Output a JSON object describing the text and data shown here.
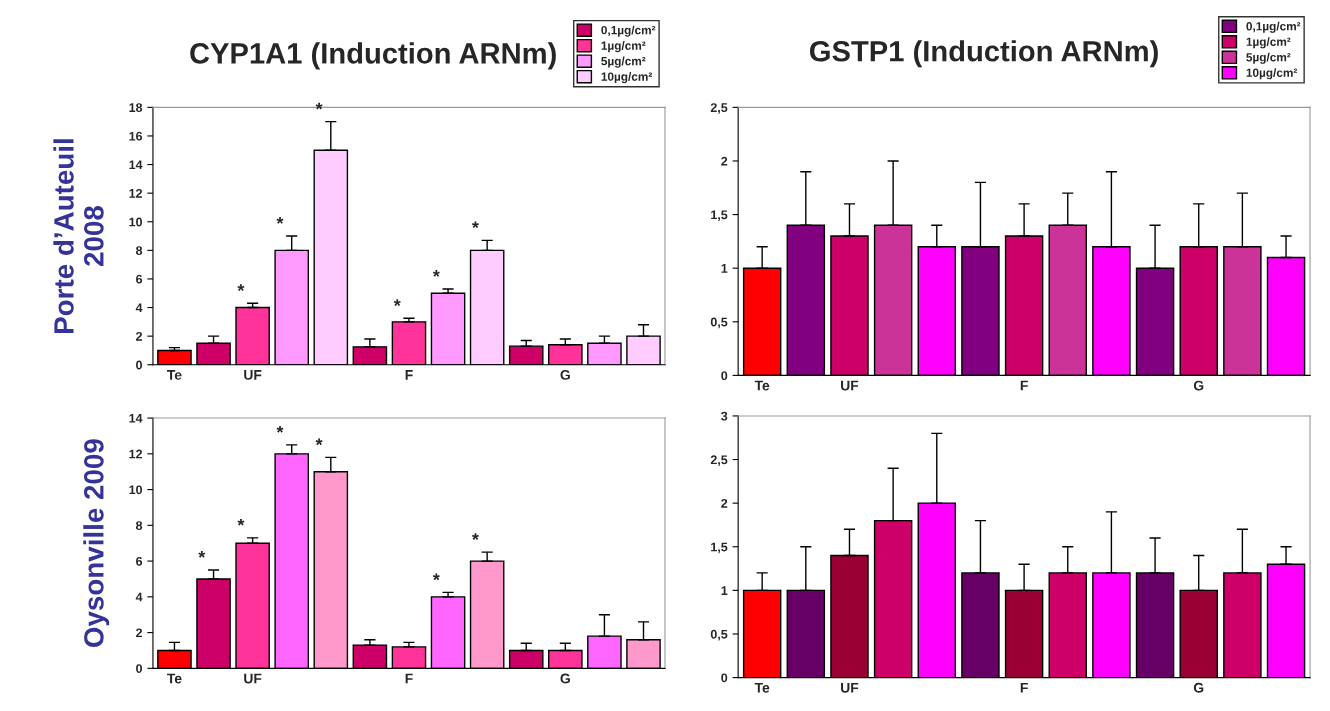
{
  "chart_data": [
    {
      "type": "bar",
      "title": "CYP1A1 (Induction ARNm)",
      "ylabel": "Porte d’Auteuil\n2008",
      "categories": [
        "Te",
        null,
        "UF",
        null,
        null,
        null,
        "F",
        null,
        null,
        null,
        "G",
        null,
        null
      ],
      "ylim": [
        0,
        18
      ],
      "yticks": [
        0,
        2,
        4,
        6,
        8,
        10,
        12,
        14,
        16,
        18
      ],
      "grid": false,
      "legend": "top right",
      "series": [
        {
          "color": "#ff0000",
          "values": [
            1.0,
            null,
            null,
            null,
            null,
            null,
            null,
            null,
            null,
            null,
            null,
            null,
            null
          ],
          "errors": [
            [
              1.0,
              1.2
            ],
            null,
            null,
            null,
            null,
            null,
            null,
            null,
            null,
            null,
            null,
            null,
            null
          ]
        },
        {
          "name": "0,1µg/cm²",
          "color": "#cc0066",
          "values": [
            null,
            1.5,
            null,
            null,
            null,
            1.25,
            null,
            null,
            null,
            1.3,
            null,
            null,
            null
          ],
          "errors": [
            null,
            [
              1.5,
              2.0
            ],
            null,
            null,
            null,
            [
              1.25,
              1.8
            ],
            null,
            null,
            null,
            [
              1.3,
              1.7
            ],
            null,
            null,
            null
          ]
        },
        {
          "name": "1µg/cm²",
          "color": "#ff3399",
          "values": [
            null,
            null,
            4.0,
            null,
            null,
            null,
            3.0,
            null,
            null,
            null,
            1.4,
            null,
            null
          ],
          "errors": [
            null,
            null,
            [
              4.0,
              4.3
            ],
            null,
            null,
            null,
            [
              3.0,
              3.25
            ],
            null,
            null,
            null,
            [
              1.4,
              1.8
            ],
            null,
            null
          ],
          "value_labels": [
            null,
            null,
            "*",
            null,
            null,
            null,
            "*",
            null,
            null,
            null,
            null,
            null,
            null
          ]
        },
        {
          "name": "5µg/cm²",
          "color": "#ff99ff",
          "values": [
            null,
            null,
            null,
            8.0,
            null,
            null,
            null,
            5.0,
            null,
            null,
            null,
            1.5,
            null
          ],
          "errors": [
            null,
            null,
            null,
            [
              8.0,
              9.0
            ],
            null,
            null,
            null,
            [
              5.0,
              5.3
            ],
            null,
            null,
            null,
            [
              1.5,
              2.0
            ],
            null
          ],
          "value_labels": [
            null,
            null,
            null,
            "*",
            null,
            null,
            null,
            "*",
            null,
            null,
            null,
            null,
            null
          ]
        },
        {
          "name": "10µg/cm²",
          "color": "#ffccff",
          "values": [
            null,
            null,
            null,
            null,
            15.0,
            null,
            null,
            null,
            8.0,
            null,
            null,
            null,
            2.0
          ],
          "errors": [
            null,
            null,
            null,
            null,
            [
              15.0,
              17.0
            ],
            null,
            null,
            null,
            [
              8.0,
              8.7
            ],
            null,
            null,
            null,
            [
              2.0,
              2.8
            ]
          ],
          "value_labels": [
            null,
            null,
            null,
            null,
            "*",
            null,
            null,
            null,
            "*",
            null,
            null,
            null,
            null
          ]
        }
      ]
    },
    {
      "type": "bar",
      "title": "GSTP1 (Induction ARNm)",
      "categories": [
        "Te",
        null,
        "UF",
        null,
        null,
        null,
        "F",
        null,
        null,
        null,
        "G",
        null,
        null
      ],
      "ylim": [
        0,
        2.5
      ],
      "yticks": [
        0,
        {
          "value": 0.5,
          "label": "0,5"
        },
        1,
        {
          "value": 1.5,
          "label": "1,5"
        },
        2,
        {
          "value": 2.5,
          "label": "2,5"
        }
      ],
      "grid": false,
      "legend": "top right",
      "series": [
        {
          "color": "#ff0000",
          "values": [
            1.0,
            null,
            null,
            null,
            null,
            null,
            null,
            null,
            null,
            null,
            null,
            null,
            null
          ],
          "errors": [
            [
              1.0,
              1.2
            ],
            null,
            null,
            null,
            null,
            null,
            null,
            null,
            null,
            null,
            null,
            null,
            null
          ]
        },
        {
          "name": "0,1µg/cm²",
          "color": "#800080",
          "values": [
            null,
            1.4,
            null,
            null,
            null,
            1.2,
            null,
            null,
            null,
            1.0,
            null,
            null,
            null
          ],
          "errors": [
            null,
            [
              1.4,
              1.9
            ],
            null,
            null,
            null,
            [
              1.2,
              1.8
            ],
            null,
            null,
            null,
            [
              1.0,
              1.4
            ],
            null,
            null,
            null
          ]
        },
        {
          "name": "1µg/cm²",
          "color": "#cc0066",
          "values": [
            null,
            null,
            1.3,
            null,
            null,
            null,
            1.3,
            null,
            null,
            null,
            1.2,
            null,
            null
          ],
          "errors": [
            null,
            null,
            [
              1.3,
              1.6
            ],
            null,
            null,
            null,
            [
              1.3,
              1.6
            ],
            null,
            null,
            null,
            [
              1.2,
              1.6
            ],
            null,
            null
          ]
        },
        {
          "name": "5µg/cm²",
          "color": "#cc3399",
          "values": [
            null,
            null,
            null,
            1.4,
            null,
            null,
            null,
            1.4,
            null,
            null,
            null,
            1.2,
            null
          ],
          "errors": [
            null,
            null,
            null,
            [
              1.4,
              2.0
            ],
            null,
            null,
            null,
            [
              1.4,
              1.7
            ],
            null,
            null,
            null,
            [
              1.2,
              1.7
            ],
            null
          ]
        },
        {
          "name": "10µg/cm²",
          "color": "#ff00ff",
          "values": [
            null,
            null,
            null,
            null,
            1.2,
            null,
            null,
            null,
            1.2,
            null,
            null,
            null,
            1.1
          ],
          "errors": [
            null,
            null,
            null,
            null,
            [
              1.2,
              1.4
            ],
            null,
            null,
            null,
            [
              1.2,
              1.9
            ],
            null,
            null,
            null,
            [
              1.1,
              1.3
            ]
          ]
        }
      ]
    },
    {
      "type": "bar",
      "ylabel": "Oysonville 2009",
      "categories": [
        "Te",
        null,
        "UF",
        null,
        null,
        null,
        "F",
        null,
        null,
        null,
        "G",
        null,
        null
      ],
      "ylim": [
        0,
        14
      ],
      "yticks": [
        0,
        2,
        4,
        6,
        8,
        10,
        12,
        14
      ],
      "grid": false,
      "series": [
        {
          "color": "#ff0000",
          "values": [
            1.0,
            null,
            null,
            null,
            null,
            null,
            null,
            null,
            null,
            null,
            null,
            null,
            null
          ],
          "errors": [
            [
              1.0,
              1.45
            ],
            null,
            null,
            null,
            null,
            null,
            null,
            null,
            null,
            null,
            null,
            null,
            null
          ]
        },
        {
          "color": "#cc0066",
          "values": [
            null,
            5.0,
            null,
            null,
            null,
            1.3,
            null,
            null,
            null,
            1.0,
            null,
            null,
            null
          ],
          "errors": [
            null,
            [
              5.0,
              5.5
            ],
            null,
            null,
            null,
            [
              1.3,
              1.6
            ],
            null,
            null,
            null,
            [
              1.0,
              1.4
            ],
            null,
            null,
            null
          ],
          "value_labels": [
            null,
            "*",
            null,
            null,
            null,
            null,
            null,
            null,
            null,
            null,
            null,
            null,
            null
          ]
        },
        {
          "color": "#ff3399",
          "values": [
            null,
            null,
            7.0,
            null,
            null,
            null,
            1.2,
            null,
            null,
            null,
            1.0,
            null,
            null
          ],
          "errors": [
            null,
            null,
            [
              7.0,
              7.3
            ],
            null,
            null,
            null,
            [
              1.2,
              1.45
            ],
            null,
            null,
            null,
            [
              1.0,
              1.4
            ],
            null,
            null
          ],
          "value_labels": [
            null,
            null,
            "*",
            null,
            null,
            null,
            null,
            null,
            null,
            null,
            null,
            null,
            null
          ]
        },
        {
          "color": "#ff66ff",
          "values": [
            null,
            null,
            null,
            12.0,
            null,
            null,
            null,
            4.0,
            null,
            null,
            null,
            1.8,
            null
          ],
          "errors": [
            null,
            null,
            null,
            [
              12.0,
              12.5
            ],
            null,
            null,
            null,
            [
              4.0,
              4.25
            ],
            null,
            null,
            null,
            [
              1.8,
              3.0
            ],
            null
          ],
          "value_labels": [
            null,
            null,
            null,
            "*",
            null,
            null,
            null,
            "*",
            null,
            null,
            null,
            null,
            null
          ]
        },
        {
          "color": "#ff99cc",
          "values": [
            null,
            null,
            null,
            null,
            11.0,
            null,
            null,
            null,
            6.0,
            null,
            null,
            null,
            1.6
          ],
          "errors": [
            null,
            null,
            null,
            null,
            [
              11.0,
              11.8
            ],
            null,
            null,
            null,
            [
              6.0,
              6.5
            ],
            null,
            null,
            null,
            [
              1.6,
              2.6
            ]
          ],
          "value_labels": [
            null,
            null,
            null,
            null,
            "*",
            null,
            null,
            null,
            "*",
            null,
            null,
            null,
            null
          ]
        }
      ]
    },
    {
      "type": "bar",
      "categories": [
        "Te",
        null,
        "UF",
        null,
        null,
        null,
        "F",
        null,
        null,
        null,
        "G",
        null,
        null
      ],
      "ylim": [
        0,
        3
      ],
      "yticks": [
        0,
        {
          "value": 0.5,
          "label": "0,5"
        },
        1,
        {
          "value": 1.5,
          "label": "1,5"
        },
        2,
        {
          "value": 2.5,
          "label": "2,5"
        },
        3
      ],
      "grid": false,
      "series": [
        {
          "color": "#ff0000",
          "values": [
            1.0,
            null,
            null,
            null,
            null,
            null,
            null,
            null,
            null,
            null,
            null,
            null,
            null
          ],
          "errors": [
            [
              1.0,
              1.2
            ],
            null,
            null,
            null,
            null,
            null,
            null,
            null,
            null,
            null,
            null,
            null,
            null
          ]
        },
        {
          "color": "#660066",
          "values": [
            null,
            1.0,
            null,
            null,
            null,
            1.2,
            null,
            null,
            null,
            1.2,
            null,
            null,
            null
          ],
          "errors": [
            null,
            [
              1.0,
              1.5
            ],
            null,
            null,
            null,
            [
              1.2,
              1.8
            ],
            null,
            null,
            null,
            [
              1.2,
              1.6
            ],
            null,
            null,
            null
          ]
        },
        {
          "color": "#990033",
          "values": [
            null,
            null,
            1.4,
            null,
            null,
            null,
            1.0,
            null,
            null,
            null,
            1.0,
            null,
            null
          ],
          "errors": [
            null,
            null,
            [
              1.4,
              1.7
            ],
            null,
            null,
            null,
            [
              1.0,
              1.3
            ],
            null,
            null,
            null,
            [
              1.0,
              1.4
            ],
            null,
            null
          ]
        },
        {
          "color": "#cc0066",
          "values": [
            null,
            null,
            null,
            1.8,
            null,
            null,
            null,
            1.2,
            null,
            null,
            null,
            1.2,
            null
          ],
          "errors": [
            null,
            null,
            null,
            [
              1.8,
              2.4
            ],
            null,
            null,
            null,
            [
              1.2,
              1.5
            ],
            null,
            null,
            null,
            [
              1.2,
              1.7
            ],
            null
          ]
        },
        {
          "color": "#ff00ff",
          "values": [
            null,
            null,
            null,
            null,
            2.0,
            null,
            null,
            null,
            1.2,
            null,
            null,
            null,
            1.3
          ],
          "errors": [
            null,
            null,
            null,
            null,
            [
              2.0,
              2.8
            ],
            null,
            null,
            null,
            [
              1.2,
              1.9
            ],
            null,
            null,
            null,
            [
              1.3,
              1.5
            ]
          ]
        }
      ]
    }
  ]
}
